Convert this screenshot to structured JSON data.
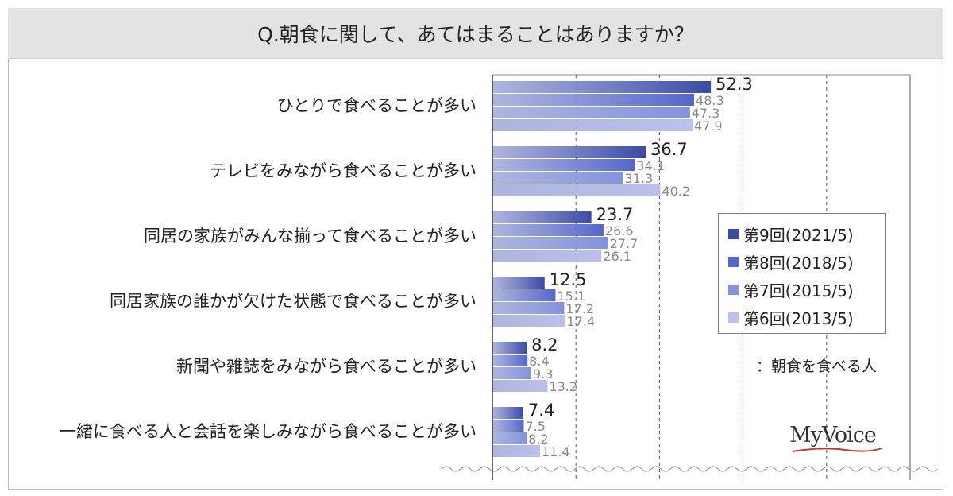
{
  "title": "Q.朝食に関して、あてはまることはありますか？",
  "note": "：朝食を食べる人",
  "logo": "MyVoice",
  "chart_data": {
    "type": "bar",
    "orientation": "horizontal",
    "categories": [
      "ひとりで食べることが多い",
      "テレビをみながら食べることが多い",
      "同居の家族がみんな揃って食べることが多い",
      "同居家族の誰かが欠けた状態で食べることが多い",
      "新聞や雑誌をみながら食べることが多い",
      "一緒に食べる人と会話を楽しみながら食べることが多い"
    ],
    "series": [
      {
        "name": "第9回(2021/5)",
        "color": "#3b4aa6",
        "values": [
          52.3,
          36.7,
          23.7,
          12.5,
          8.2,
          7.4
        ]
      },
      {
        "name": "第8回(2018/5)",
        "color": "#5566cc",
        "values": [
          48.3,
          34.1,
          26.6,
          15.1,
          8.4,
          7.5
        ]
      },
      {
        "name": "第7回(2015/5)",
        "color": "#8292dd",
        "values": [
          47.3,
          31.3,
          27.7,
          17.2,
          9.3,
          8.2
        ]
      },
      {
        "name": "第6回(2013/5)",
        "color": "#b9c1ec",
        "values": [
          47.9,
          40.2,
          26.1,
          17.4,
          13.2,
          11.4
        ]
      }
    ],
    "xlim": [
      0,
      100
    ],
    "grid": true,
    "legend_position": "right"
  }
}
